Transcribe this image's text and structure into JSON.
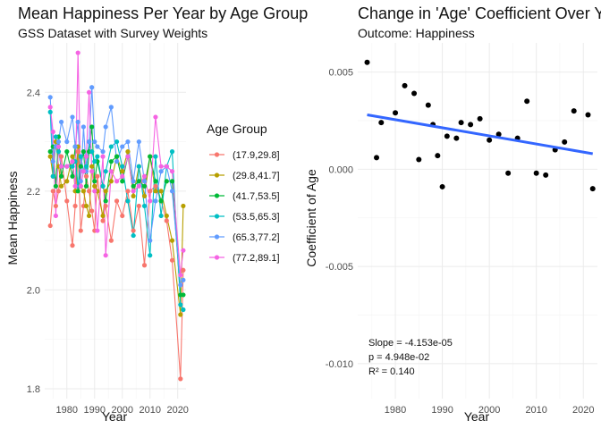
{
  "chart_data": [
    {
      "type": "line",
      "title": "Mean Happiness Per Year by Age Group",
      "subtitle": "GSS Dataset with Survey Weights",
      "xlabel": "Year",
      "ylabel": "Mean Happiness",
      "xlim": [
        1972,
        2023
      ],
      "ylim": [
        1.78,
        2.5
      ],
      "xticks": [
        "1980",
        "1990",
        "2000",
        "2010",
        "2020"
      ],
      "yticks": [
        "1.8",
        "2.0",
        "2.2",
        "2.4"
      ],
      "grid": true,
      "legend_position": "right",
      "legend_title": "Age Group",
      "x": [
        1974,
        1975,
        1976,
        1977,
        1978,
        1980,
        1982,
        1983,
        1984,
        1985,
        1986,
        1987,
        1988,
        1989,
        1990,
        1991,
        1993,
        1994,
        1996,
        1998,
        2000,
        2002,
        2004,
        2006,
        2008,
        2010,
        2012,
        2014,
        2016,
        2018,
        2021,
        2022
      ],
      "series": [
        {
          "name": "(17.9,29.8]",
          "color": "#F8766D",
          "values": [
            2.13,
            2.2,
            2.17,
            2.2,
            2.27,
            2.18,
            2.09,
            2.17,
            2.28,
            2.12,
            2.17,
            2.23,
            2.2,
            2.16,
            2.12,
            2.23,
            2.14,
            2.17,
            2.1,
            2.18,
            2.15,
            2.2,
            2.12,
            2.17,
            2.05,
            2.2,
            2.21,
            2.18,
            2.14,
            2.06,
            1.82,
            2.04
          ]
        },
        {
          "name": "(29.8,41.7]",
          "color": "#B79F00",
          "values": [
            2.27,
            2.23,
            2.3,
            2.25,
            2.21,
            2.22,
            2.27,
            2.2,
            2.29,
            2.21,
            2.2,
            2.17,
            2.15,
            2.25,
            2.21,
            2.2,
            2.15,
            2.2,
            2.22,
            2.27,
            2.24,
            2.28,
            2.19,
            2.25,
            2.19,
            2.27,
            2.2,
            2.2,
            2.15,
            2.1,
            1.95,
            2.17
          ]
        },
        {
          "name": "(41.7,53.5]",
          "color": "#00BA38",
          "values": [
            2.28,
            2.29,
            2.21,
            2.31,
            2.23,
            2.28,
            2.23,
            2.29,
            2.2,
            2.25,
            2.28,
            2.21,
            2.28,
            2.33,
            2.22,
            2.26,
            2.21,
            2.18,
            2.26,
            2.27,
            2.22,
            2.27,
            2.21,
            2.22,
            2.21,
            2.27,
            2.22,
            2.18,
            2.22,
            2.22,
            1.99,
            1.99
          ]
        },
        {
          "name": "(53.5,65.3]",
          "color": "#00BFC4",
          "values": [
            2.36,
            2.23,
            2.31,
            2.28,
            2.25,
            2.25,
            2.25,
            2.26,
            2.21,
            2.27,
            2.24,
            2.25,
            2.3,
            2.28,
            2.26,
            2.27,
            2.21,
            2.24,
            2.29,
            2.3,
            2.25,
            2.18,
            2.11,
            2.25,
            2.17,
            2.07,
            2.27,
            2.15,
            2.25,
            2.28,
            1.97,
            1.96
          ]
        },
        {
          "name": "(65.3,77.2]",
          "color": "#619CFF",
          "values": [
            2.39,
            2.26,
            2.29,
            2.3,
            2.34,
            2.3,
            2.35,
            2.29,
            2.34,
            2.22,
            2.33,
            2.24,
            2.3,
            2.41,
            2.3,
            2.29,
            2.28,
            2.33,
            2.37,
            2.26,
            2.29,
            2.3,
            2.22,
            2.3,
            2.22,
            2.1,
            2.18,
            2.24,
            2.25,
            2.2,
            2.01,
            2.02
          ]
        },
        {
          "name": "(77.2,89.1]",
          "color": "#F564E3",
          "values": [
            2.37,
            2.32,
            2.15,
            2.29,
            2.25,
            2.25,
            2.26,
            2.21,
            2.48,
            2.21,
            2.24,
            2.27,
            2.4,
            2.24,
            2.2,
            2.12,
            2.27,
            2.07,
            2.24,
            2.22,
            2.23,
            2.27,
            2.2,
            2.21,
            2.23,
            2.18,
            2.35,
            2.25,
            2.25,
            2.24,
            2.03,
            2.08
          ]
        }
      ]
    },
    {
      "type": "scatter",
      "title": "Change in 'Age' Coefficient Over Years",
      "subtitle": "Outcome: Happiness",
      "xlabel": "Year",
      "ylabel": "Coefficient of Age",
      "xlim": [
        1972,
        2023
      ],
      "ylim": [
        -0.0118,
        0.0065
      ],
      "xticks": [
        "1980",
        "1990",
        "2000",
        "2010",
        "2020"
      ],
      "yticks": [
        "-0.010",
        "-0.005",
        "0.000",
        "0.005"
      ],
      "grid": true,
      "point_color": "#000000",
      "points": {
        "x": [
          1974,
          1976,
          1977,
          1980,
          1982,
          1984,
          1985,
          1987,
          1988,
          1989,
          1990,
          1991,
          1993,
          1994,
          1996,
          1998,
          2000,
          2002,
          2004,
          2006,
          2008,
          2010,
          2012,
          2014,
          2016,
          2018,
          2021,
          2022
        ],
        "y": [
          0.0055,
          0.0006,
          0.0024,
          0.0029,
          0.0043,
          0.0039,
          0.0005,
          0.0033,
          0.0023,
          0.0007,
          -0.0009,
          0.0017,
          0.0016,
          0.0024,
          0.0023,
          0.0026,
          0.0015,
          0.0018,
          -0.0002,
          0.0016,
          0.0035,
          -0.0002,
          -0.0003,
          0.001,
          0.0014,
          0.003,
          0.0028,
          -0.001
        ]
      },
      "trend": {
        "color": "#3366FF",
        "x": [
          1974,
          2022
        ],
        "y": [
          0.0028,
          0.0008
        ]
      },
      "annotations": [
        "Slope = -4.153e-05",
        "p = 4.948e-02",
        "R² = 0.140"
      ]
    }
  ]
}
